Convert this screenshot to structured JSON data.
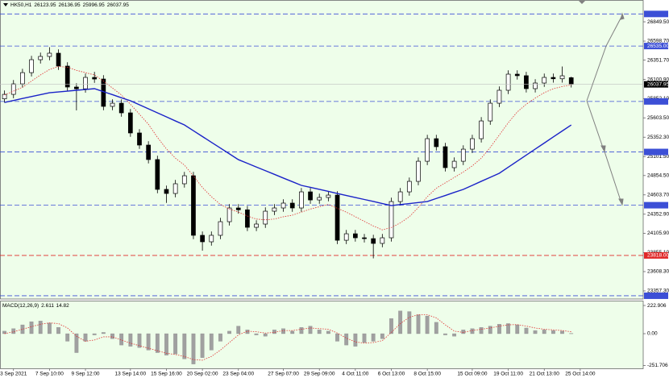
{
  "chart_data": [
    {
      "type": "candlestick",
      "title": "HK50,H1",
      "xlim": [
        -0.5,
        71
      ],
      "ylim": [
        23263,
        27080
      ],
      "xticks": [
        {
          "value": 1,
          "label": "3 Sep 2021"
        },
        {
          "value": 5,
          "label": "7 Sep 10:00"
        },
        {
          "value": 9,
          "label": "9 Sep 12:00"
        },
        {
          "value": 14,
          "label": "13 Sep 14:00"
        },
        {
          "value": 18,
          "label": "15 Sep 16:00"
        },
        {
          "value": 22,
          "label": "20 Sep 02:00"
        },
        {
          "value": 26,
          "label": "23 Sep 04:00"
        },
        {
          "value": 31,
          "label": "27 Sep 07:00"
        },
        {
          "value": 35,
          "label": "29 Sep 09:00"
        },
        {
          "value": 39,
          "label": "4 Oct 11:00"
        },
        {
          "value": 43,
          "label": "6 Oct 13:00"
        },
        {
          "value": 47,
          "label": "8 Oct 15:00"
        },
        {
          "value": 52,
          "label": "15 Oct 09:00"
        },
        {
          "value": 56,
          "label": "19 Oct 11:00"
        },
        {
          "value": 60,
          "label": "21 Oct 13:00"
        },
        {
          "value": 64,
          "label": "25 Oct 14:00"
        }
      ],
      "yticks": [
        {
          "value": 26849.5,
          "label": "26849.50"
        },
        {
          "value": 26598.7,
          "label": "26598.70"
        },
        {
          "value": 26351.7,
          "label": "26351.70"
        },
        {
          "value": 26100.9,
          "label": "26100.90"
        },
        {
          "value": 25852.1,
          "label": "25852.10"
        },
        {
          "value": 25603.5,
          "label": "25603.50"
        },
        {
          "value": 25352.3,
          "label": "25352.30"
        },
        {
          "value": 25101.5,
          "label": "25101.50"
        },
        {
          "value": 24854.5,
          "label": "24854.50"
        },
        {
          "value": 24603.7,
          "label": "24603.70"
        },
        {
          "value": 24352.9,
          "label": "24352.90"
        },
        {
          "value": 24105.9,
          "label": "24105.90"
        },
        {
          "value": 23855.1,
          "label": "23855.10"
        },
        {
          "value": 23608.3,
          "label": "23608.30"
        },
        {
          "value": 23357.3,
          "label": "23357.30"
        }
      ],
      "levels": [
        {
          "value": 26951.26,
          "color": "#3c4fd6"
        },
        {
          "value": 26535.0,
          "label": "26535.00",
          "color": "#3c4fd6"
        },
        {
          "value": 25816.19,
          "color": "#3c4fd6"
        },
        {
          "value": 25160.63,
          "color": "#3c4fd6"
        },
        {
          "value": 24469.58,
          "color": "#3c4fd6"
        },
        {
          "value": 23818.0,
          "label": "23818.00",
          "color": "#e02828"
        },
        {
          "value": 23294.97,
          "color": "#3c4fd6"
        }
      ],
      "open": [
        25850,
        25908,
        26044,
        26190,
        26358,
        26400,
        26442,
        26275,
        26003,
        25980,
        26128,
        26107,
        25752,
        25793,
        25668,
        25407,
        25250,
        25062,
        24675,
        24622,
        24748,
        24852,
        24079,
        23995,
        24079,
        24256,
        24434,
        24410,
        24183,
        24225,
        24392,
        24434,
        24497,
        24434,
        24643,
        24538,
        24570,
        24601,
        24015,
        24099,
        24047,
        24036,
        23974,
        24047,
        24517,
        24643,
        24779,
        25040,
        25333,
        25229,
        24957,
        25040,
        25197,
        25333,
        25563,
        25793,
        25961,
        26170,
        26150,
        25982,
        26055,
        26128,
        26110,
        26123.95
      ],
      "high": [
        25958,
        26094,
        26240,
        26408,
        26450,
        26520,
        26492,
        26325,
        26053,
        26178,
        26200,
        26157,
        25843,
        25843,
        25718,
        25457,
        25300,
        25112,
        24725,
        24798,
        24902,
        24902,
        24129,
        24129,
        24306,
        24484,
        24484,
        24460,
        24275,
        24442,
        24484,
        24547,
        24547,
        24693,
        24693,
        24620,
        24651,
        24651,
        24149,
        24149,
        24097,
        24086,
        24097,
        24567,
        24693,
        24829,
        25090,
        25383,
        25383,
        25279,
        25090,
        25247,
        25383,
        25613,
        25843,
        26011,
        26220,
        26220,
        26200,
        26105,
        26178,
        26178,
        26270,
        26136.95
      ],
      "low": [
        25800,
        25858,
        25994,
        26140,
        26308,
        26350,
        26225,
        25953,
        25700,
        25930,
        26057,
        25702,
        25702,
        25618,
        25357,
        25200,
        25012,
        24625,
        24500,
        24572,
        24698,
        24029,
        23880,
        23945,
        24029,
        24206,
        24360,
        24133,
        24133,
        24175,
        24342,
        24384,
        24384,
        24384,
        24488,
        24488,
        24520,
        23965,
        23965,
        23997,
        23986,
        23780,
        23924,
        23997,
        24467,
        24593,
        24729,
        24990,
        25179,
        24907,
        24907,
        24990,
        25147,
        25283,
        25513,
        25743,
        25911,
        26100,
        25932,
        25932,
        26005,
        26060,
        26060,
        25996.95
      ],
      "close": [
        25908,
        26044,
        26190,
        26358,
        26400,
        26442,
        26275,
        26003,
        25980,
        26128,
        26107,
        25752,
        25793,
        25668,
        25407,
        25250,
        25062,
        24675,
        24622,
        24748,
        24852,
        24079,
        23995,
        24079,
        24256,
        24434,
        24410,
        24183,
        24225,
        24392,
        24434,
        24497,
        24434,
        24643,
        24538,
        24570,
        24601,
        24015,
        24099,
        24047,
        24036,
        23974,
        24047,
        24517,
        24643,
        24779,
        25040,
        25333,
        25229,
        24957,
        25040,
        25197,
        25333,
        25563,
        25793,
        25961,
        26170,
        26150,
        25982,
        26055,
        26128,
        26110,
        26149,
        26037.95
      ],
      "series": [
        {
          "color": "#e03030",
          "dash": true,
          "values": [
            25900,
            25950,
            26000,
            26080,
            26160,
            26230,
            26270,
            26260,
            26220,
            26190,
            26160,
            26080,
            25990,
            25900,
            25780,
            25650,
            25520,
            25350,
            25200,
            25080,
            24990,
            24850,
            24700,
            24580,
            24480,
            24420,
            24380,
            24330,
            24290,
            24280,
            24290,
            24320,
            24340,
            24380,
            24420,
            24450,
            24480,
            24430,
            24380,
            24320,
            24260,
            24200,
            24150,
            24180,
            24240,
            24320,
            24440,
            24580,
            24690,
            24760,
            24830,
            24900,
            24980,
            25080,
            25220,
            25380,
            25540,
            25680,
            25780,
            25860,
            25930,
            25980,
            26010,
            26030
          ]
        },
        {
          "color": "#1a22c8",
          "dash": false,
          "values": [
            25804,
            25829,
            25854,
            25879,
            25904,
            25929,
            25940,
            25950,
            25961,
            25971,
            25982,
            25943,
            25904,
            25864,
            25825,
            25773,
            25720,
            25668,
            25616,
            25563,
            25511,
            25436,
            25361,
            25286,
            25211,
            25136,
            25061,
            25013,
            24965,
            24918,
            24870,
            24822,
            24775,
            24727,
            24701,
            24675,
            24649,
            24622,
            24596,
            24570,
            24544,
            24518,
            24491,
            24465,
            24478,
            24491,
            24504,
            24517,
            24557,
            24596,
            24636,
            24675,
            24727,
            24780,
            24832,
            24884,
            24963,
            25041,
            25120,
            25198,
            25276,
            25355,
            25433,
            25511
          ]
        }
      ]
    },
    {
      "type": "bar",
      "title": "MACD(12,26,9)",
      "ylim": [
        -274,
        255
      ],
      "yticks": [
        222.906,
        {
          "value": 0,
          "label": "0.00"
        },
        -251.706
      ],
      "color": "#a0a0a0",
      "values": [
        20,
        40,
        70,
        95,
        100,
        85,
        50,
        -60,
        -150,
        -60,
        -10,
        10,
        -40,
        -90,
        -100,
        -110,
        -130,
        -150,
        -170,
        -160,
        -200,
        -240,
        -190,
        -130,
        -60,
        20,
        60,
        30,
        -10,
        -20,
        30,
        40,
        20,
        50,
        60,
        30,
        20,
        -60,
        -90,
        -100,
        -70,
        -60,
        -40,
        120,
        180,
        175,
        150,
        140,
        90,
        -10,
        -20,
        30,
        40,
        50,
        60,
        75,
        80,
        70,
        45,
        25,
        30,
        25,
        20,
        2.611
      ],
      "series": [
        {
          "color": "#e03030",
          "dash": true,
          "values": [
            0,
            15,
            35,
            55,
            75,
            85,
            80,
            45,
            -20,
            -60,
            -50,
            -25,
            -25,
            -50,
            -75,
            -95,
            -115,
            -135,
            -155,
            -165,
            -180,
            -205,
            -210,
            -180,
            -130,
            -70,
            -10,
            20,
            15,
            5,
            10,
            25,
            25,
            35,
            45,
            40,
            35,
            5,
            -35,
            -65,
            -75,
            -70,
            -55,
            10,
            80,
            130,
            150,
            150,
            125,
            70,
            20,
            10,
            25,
            35,
            45,
            60,
            70,
            72,
            60,
            45,
            35,
            30,
            25,
            14.82
          ]
        }
      ]
    }
  ]
}
